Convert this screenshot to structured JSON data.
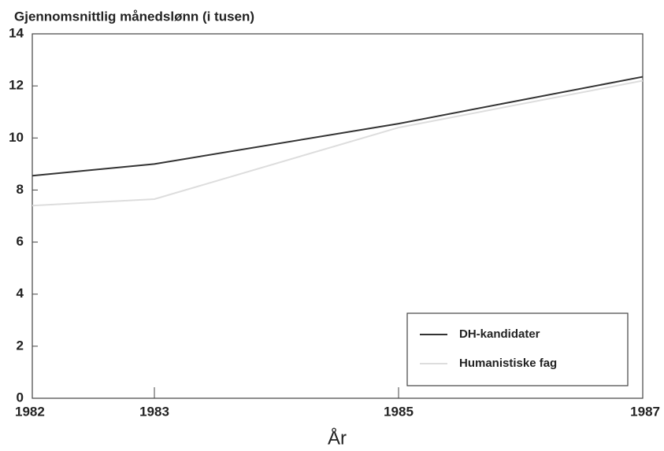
{
  "chart_data": {
    "type": "line",
    "title": "Gjennomsnittlig månedslønn (i tusen)",
    "x_label": "År",
    "x": [
      1982,
      1983,
      1985,
      1987
    ],
    "series": [
      {
        "name": "DH-kandidater",
        "color": "#333333",
        "values": [
          8.55,
          9.0,
          10.55,
          12.35
        ]
      },
      {
        "name": "Humanistiske fag",
        "color": "#dddddd",
        "values": [
          7.4,
          7.65,
          10.4,
          12.2
        ]
      }
    ],
    "xlim": [
      1982,
      1987
    ],
    "xticks": [
      1982,
      1983,
      1985,
      1987
    ],
    "ylim": [
      0,
      14
    ],
    "yticks": [
      0,
      2,
      4,
      6,
      8,
      10,
      12,
      14
    ],
    "legend": "lower right"
  }
}
